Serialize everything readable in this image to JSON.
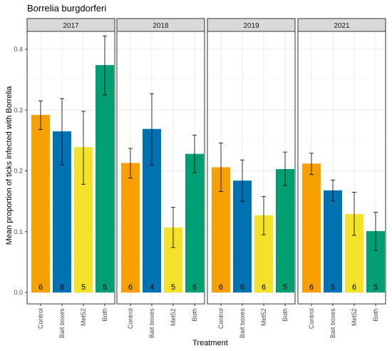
{
  "chart_data": {
    "type": "bar",
    "title": "Borrelia burgdorferi",
    "xlabel": "Treatment",
    "ylabel": "Mean proportion of ticks infected with Borrelia",
    "ylim": [
      0,
      0.42
    ],
    "yticks": [
      0.0,
      0.1,
      0.2,
      0.3,
      0.4
    ],
    "ytick_labels": [
      "0.0",
      "0.1",
      "0.2",
      "0.3",
      "0.4"
    ],
    "categories": [
      "Control",
      "Bait boxes",
      "Met52",
      "Both"
    ],
    "colors": {
      "Control": "#F8A000",
      "Bait boxes": "#0072B2",
      "Met52": "#F3E22A",
      "Both": "#009E73"
    },
    "grid": true,
    "legend": "none",
    "facets": [
      {
        "label": "2017",
        "values": [
          0.292,
          0.265,
          0.239,
          0.374
        ],
        "lower": [
          0.268,
          0.21,
          0.178,
          0.325
        ],
        "upper": [
          0.315,
          0.319,
          0.298,
          0.422
        ],
        "n": [
          "6",
          "6",
          "5",
          "5"
        ]
      },
      {
        "label": "2018",
        "values": [
          0.213,
          0.269,
          0.107,
          0.228
        ],
        "lower": [
          0.188,
          0.21,
          0.074,
          0.197
        ],
        "upper": [
          0.237,
          0.327,
          0.14,
          0.259
        ],
        "n": [
          "6",
          "4",
          "5",
          "5"
        ]
      },
      {
        "label": "2019",
        "values": [
          0.206,
          0.184,
          0.127,
          0.203
        ],
        "lower": [
          0.166,
          0.15,
          0.095,
          0.176
        ],
        "upper": [
          0.246,
          0.218,
          0.158,
          0.231
        ],
        "n": [
          "6",
          "6",
          "6",
          "5"
        ]
      },
      {
        "label": "2021",
        "values": [
          0.212,
          0.168,
          0.129,
          0.101
        ],
        "lower": [
          0.194,
          0.151,
          0.094,
          0.069
        ],
        "upper": [
          0.229,
          0.185,
          0.165,
          0.132
        ],
        "n": [
          "6",
          "5",
          "6",
          "5"
        ]
      }
    ]
  }
}
